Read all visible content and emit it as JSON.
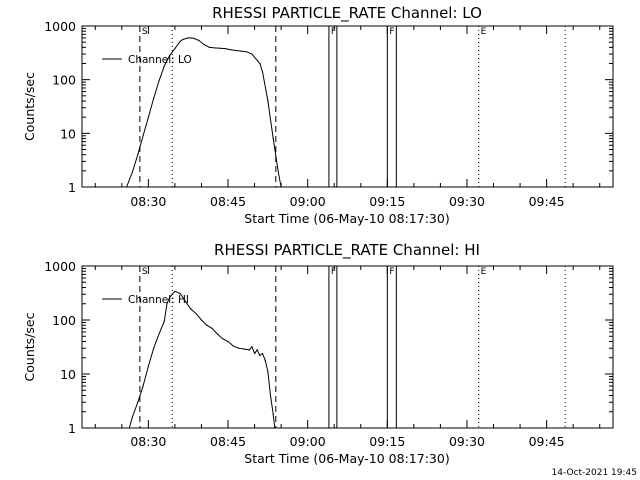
{
  "timestamp": "14-Oct-2021 19:45",
  "chart_data": [
    {
      "type": "line",
      "title": "RHESSI PARTICLE_RATE Channel: LO",
      "xlabel": "Start Time (06-May-10 08:17:30)",
      "ylabel": "Counts/sec",
      "yscale": "log",
      "ylim": [
        1,
        1000
      ],
      "xlim_minutes": [
        0,
        100
      ],
      "y_ticks": [
        {
          "v": 1000,
          "label": "1000"
        },
        {
          "v": 100,
          "label": "100"
        },
        {
          "v": 10,
          "label": "10"
        },
        {
          "v": 1,
          "label": "1"
        }
      ],
      "x_ticks": [
        {
          "t": 12.5,
          "label": "08:30"
        },
        {
          "t": 27.5,
          "label": "08:45"
        },
        {
          "t": 42.5,
          "label": "09:00"
        },
        {
          "t": 57.5,
          "label": "09:15"
        },
        {
          "t": 72.5,
          "label": "09:30"
        },
        {
          "t": 87.5,
          "label": "09:45"
        }
      ],
      "legend": {
        "position": "top-left",
        "label": "Channel: LO"
      },
      "series": [
        {
          "name": "Channel: LO",
          "t": [
            8.4,
            9.5,
            10.5,
            11.5,
            12.5,
            13.5,
            14.5,
            15.5,
            16.5,
            17.5,
            18.5,
            19.0,
            20.0,
            21.0,
            22.0,
            23.0,
            24.0,
            25.0,
            26.0,
            27.0,
            28.0,
            29.0,
            30.0,
            31.0,
            32.0,
            33.0,
            33.5,
            34.0,
            35.0,
            36.0,
            37.0,
            37.5
          ],
          "values": [
            1.0,
            1.9,
            4.0,
            9.0,
            20,
            45,
            95,
            180,
            280,
            380,
            520,
            560,
            600,
            590,
            540,
            450,
            400,
            390,
            385,
            380,
            360,
            350,
            340,
            330,
            300,
            230,
            200,
            140,
            40,
            8,
            1.8,
            1.0
          ]
        }
      ],
      "markers": [
        {
          "t": 10.9,
          "style": "dashed",
          "label": "S"
        },
        {
          "t": 17.0,
          "style": "dotted",
          "label": ""
        },
        {
          "t": 36.5,
          "style": "dashed",
          "label": ""
        },
        {
          "t": 46.5,
          "style": "solid",
          "label": "F"
        },
        {
          "t": 48.0,
          "style": "solid",
          "label": ""
        },
        {
          "t": 57.5,
          "style": "solid",
          "label": "F"
        },
        {
          "t": 59.2,
          "style": "solid",
          "label": ""
        },
        {
          "t": 74.7,
          "style": "dotted",
          "label": "E"
        },
        {
          "t": 91.0,
          "style": "dotted",
          "label": ""
        }
      ]
    },
    {
      "type": "line",
      "title": "RHESSI PARTICLE_RATE Channel: HI",
      "xlabel": "Start Time (06-May-10 08:17:30)",
      "ylabel": "Counts/sec",
      "yscale": "log",
      "ylim": [
        1,
        1000
      ],
      "xlim_minutes": [
        0,
        100
      ],
      "y_ticks": [
        {
          "v": 1000,
          "label": "1000"
        },
        {
          "v": 100,
          "label": "100"
        },
        {
          "v": 10,
          "label": "10"
        },
        {
          "v": 1,
          "label": "1"
        }
      ],
      "x_ticks": [
        {
          "t": 12.5,
          "label": "08:30"
        },
        {
          "t": 27.5,
          "label": "08:45"
        },
        {
          "t": 42.5,
          "label": "09:00"
        },
        {
          "t": 57.5,
          "label": "09:15"
        },
        {
          "t": 72.5,
          "label": "09:30"
        },
        {
          "t": 87.5,
          "label": "09:45"
        }
      ],
      "legend": {
        "position": "top-left",
        "label": "Channel: HI"
      },
      "series": [
        {
          "name": "Channel: HI",
          "t": [
            8.9,
            9.5,
            10.5,
            11.5,
            12.5,
            13.5,
            14.5,
            15.5,
            16.0,
            16.5,
            17.0,
            17.5,
            18.5,
            19.5,
            20.5,
            21.5,
            22.5,
            23.5,
            24.5,
            25.5,
            26.5,
            27.5,
            28.5,
            29.5,
            30.5,
            31.5,
            32.0,
            32.5,
            33.0,
            33.5,
            34.0,
            34.5,
            35.0,
            35.5,
            36.0,
            36.3
          ],
          "values": [
            1.0,
            1.6,
            3.0,
            6.0,
            14,
            30,
            55,
            95,
            200,
            260,
            300,
            340,
            310,
            220,
            160,
            130,
            100,
            80,
            70,
            55,
            45,
            40,
            33,
            30,
            29,
            28,
            32,
            24,
            28,
            22,
            24,
            18,
            11,
            4,
            1.8,
            1.0
          ]
        }
      ],
      "markers": [
        {
          "t": 10.9,
          "style": "dashed",
          "label": "S"
        },
        {
          "t": 17.0,
          "style": "dotted",
          "label": ""
        },
        {
          "t": 36.5,
          "style": "dashed",
          "label": ""
        },
        {
          "t": 46.5,
          "style": "solid",
          "label": "F"
        },
        {
          "t": 48.0,
          "style": "solid",
          "label": ""
        },
        {
          "t": 57.5,
          "style": "solid",
          "label": "F"
        },
        {
          "t": 59.2,
          "style": "solid",
          "label": ""
        },
        {
          "t": 74.7,
          "style": "dotted",
          "label": "E"
        },
        {
          "t": 91.0,
          "style": "dotted",
          "label": ""
        }
      ]
    }
  ]
}
